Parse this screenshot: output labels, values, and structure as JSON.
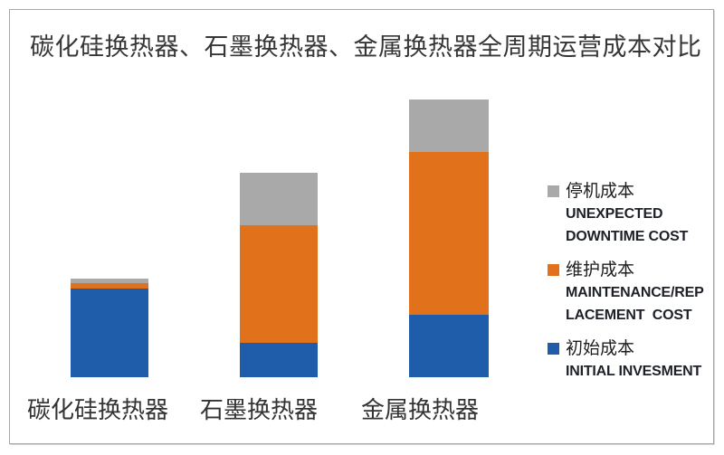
{
  "title": "碳化硅换热器、石墨换热器、金属换热器全周期运营成本对比",
  "colors": {
    "initial": "#1f5ca9",
    "maintenance": "#e2711c",
    "downtime": "#a9a9a9",
    "title_text": "#363636",
    "axis_text": "#333333",
    "legend_text": "#1d2027",
    "border": "#a8a8a8"
  },
  "chart_data": {
    "type": "bar",
    "stacked": true,
    "title": "碳化硅换热器、石墨换热器、金属换热器全周期运营成本对比",
    "categories": [
      "碳化硅换热器",
      "石墨换热器",
      "金属换热器"
    ],
    "series": [
      {
        "name": "初始成本 INITIAL INVESMENT",
        "color_key": "initial",
        "values": [
          32.0,
          12.5,
          22.5
        ]
      },
      {
        "name": "维护成本 MAINTENANCE/REPLACEMENT COST",
        "color_key": "maintenance",
        "values": [
          2.0,
          42.5,
          58.5
        ]
      },
      {
        "name": "停机成本 UNEXPECTED DOWNTIME COST",
        "color_key": "downtime",
        "values": [
          1.5,
          19.0,
          19.0
        ]
      }
    ],
    "totals": [
      35.5,
      74.0,
      100.0
    ],
    "value_units": "relative lifecycle cost (metal exchanger total = 100), estimated from bar heights; no value axis shown",
    "xlabel": "",
    "ylabel": "",
    "ylim": [
      0,
      100
    ],
    "grid": false,
    "legend_position": "right"
  },
  "legend": {
    "items": [
      {
        "zh": "停机成本",
        "en_lines": [
          "UNEXPECTED",
          "DOWNTIME COST"
        ],
        "color_key": "downtime"
      },
      {
        "zh": "维护成本",
        "en_lines": [
          "MAINTENANCE/REP",
          "LACEMENT  COST"
        ],
        "color_key": "maintenance"
      },
      {
        "zh": "初始成本",
        "en_lines": [
          "INITIAL INVESMENT"
        ],
        "color_key": "initial"
      }
    ]
  }
}
